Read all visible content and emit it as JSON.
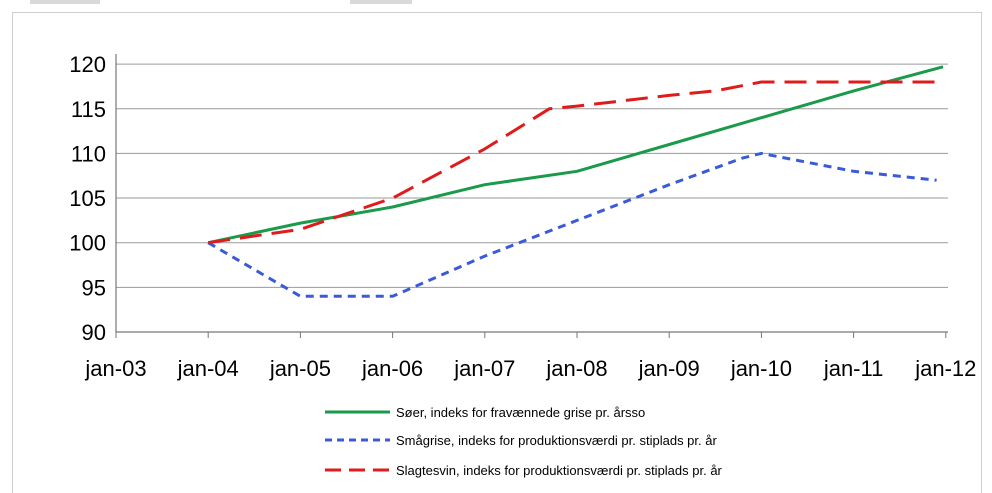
{
  "chart_data": {
    "type": "line",
    "categories": [
      "jan-03",
      "jan-04",
      "jan-05",
      "jan-06",
      "jan-07",
      "jan-08",
      "jan-09",
      "jan-10",
      "jan-11",
      "jan-12"
    ],
    "ylim": [
      90,
      120
    ],
    "yticks": [
      90,
      95,
      100,
      105,
      110,
      115,
      120
    ],
    "grid": true,
    "legend_position": "bottom",
    "series": [
      {
        "name": "Søer, indeks for fravænnede grise pr. årsso",
        "color": "#1a9a4a",
        "style": "solid",
        "points": [
          [
            1,
            100
          ],
          [
            2,
            102.2
          ],
          [
            3,
            104
          ],
          [
            4,
            106.5
          ],
          [
            5,
            108
          ],
          [
            6,
            111
          ],
          [
            7,
            114
          ],
          [
            8,
            117
          ],
          [
            8.97,
            119.7
          ]
        ]
      },
      {
        "name": "Smågrise, indeks for produktionsværdi pr. stiplads pr. år",
        "color": "#3a5ad8",
        "style": "dotted",
        "points": [
          [
            1,
            100
          ],
          [
            2,
            94
          ],
          [
            3,
            94
          ],
          [
            4,
            98.5
          ],
          [
            5,
            102.5
          ],
          [
            6,
            106.5
          ],
          [
            6.8,
            109.5
          ],
          [
            7,
            110
          ],
          [
            8,
            108
          ],
          [
            8.9,
            107
          ]
        ]
      },
      {
        "name": "Slagtesvin, indeks for produktionsværdi pr. stiplads pr. år",
        "color": "#e01b1b",
        "style": "dashed",
        "points": [
          [
            1,
            100
          ],
          [
            2,
            101.5
          ],
          [
            3,
            105
          ],
          [
            4,
            110.5
          ],
          [
            4.7,
            115
          ],
          [
            5,
            115.3
          ],
          [
            6,
            116.5
          ],
          [
            6.5,
            117
          ],
          [
            7,
            118
          ],
          [
            8,
            118
          ],
          [
            8.95,
            118
          ]
        ]
      }
    ]
  }
}
